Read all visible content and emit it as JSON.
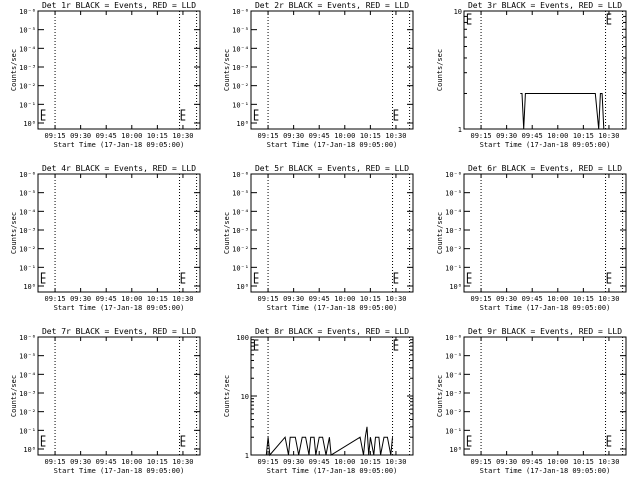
{
  "chart_data": [
    {
      "type": "line",
      "title": "Det 1r BLACK = Events, RED = LLD",
      "ylabel": "Counts/sec",
      "xlabel": "Start Time (17-Jan-18 09:05:00)",
      "xlim": [
        "09:05",
        "10:40"
      ],
      "x_ticks": [
        "09:15",
        "09:30",
        "09:45",
        "10:00",
        "10:15",
        "10:30"
      ],
      "scale": "log",
      "y_tick_labels": [
        "10⁰",
        "10⁻¹",
        "10⁻²",
        "10⁻³",
        "10⁻⁴",
        "10⁻⁵",
        "10⁻⁶"
      ],
      "dotted_markers": [
        "09:15",
        "10:28",
        "10:38"
      ],
      "gap_markers": [
        "09:07",
        "10:29"
      ],
      "series": []
    },
    {
      "type": "line",
      "title": "Det 2r BLACK = Events, RED = LLD",
      "ylabel": "Counts/sec",
      "xlabel": "Start Time (17-Jan-18 09:05:00)",
      "xlim": [
        "09:05",
        "10:40"
      ],
      "x_ticks": [
        "09:15",
        "09:30",
        "09:45",
        "10:00",
        "10:15",
        "10:30"
      ],
      "scale": "log",
      "y_tick_labels": [
        "10⁰",
        "10⁻¹",
        "10⁻²",
        "10⁻³",
        "10⁻⁴",
        "10⁻⁵",
        "10⁻⁶"
      ],
      "dotted_markers": [
        "09:15",
        "10:28",
        "10:38"
      ],
      "gap_markers": [
        "09:07",
        "10:29"
      ],
      "series": []
    },
    {
      "type": "line",
      "title": "Det 3r BLACK = Events, RED = LLD",
      "ylabel": "Counts/sec",
      "xlabel": "Start Time (17-Jan-18 09:05:00)",
      "xlim": [
        "09:05",
        "10:40"
      ],
      "x_ticks": [
        "09:15",
        "09:30",
        "09:45",
        "10:00",
        "10:15",
        "10:30"
      ],
      "scale": "log",
      "y_tick_labels": [
        "1",
        "10"
      ],
      "ylim": [
        1,
        10
      ],
      "dotted_markers": [
        "09:15",
        "10:28",
        "10:38"
      ],
      "gap_markers": [
        "09:07",
        "10:29"
      ],
      "series": [
        {
          "values": [
            [
              "09:38",
              2
            ],
            [
              "09:39",
              2
            ],
            [
              "09:40",
              1
            ],
            [
              "09:41",
              2
            ],
            [
              "09:42",
              2
            ],
            [
              "10:19",
              2
            ],
            [
              "10:20",
              2
            ],
            [
              "10:22",
              2
            ],
            [
              "10:24",
              1
            ],
            [
              "10:25",
              2
            ],
            [
              "10:26",
              2
            ],
            [
              "10:27",
              1
            ]
          ]
        }
      ]
    },
    {
      "type": "line",
      "title": "Det 4r BLACK = Events, RED = LLD",
      "ylabel": "Counts/sec",
      "xlabel": "Start Time (17-Jan-18 09:05:00)",
      "xlim": [
        "09:05",
        "10:40"
      ],
      "x_ticks": [
        "09:15",
        "09:30",
        "09:45",
        "10:00",
        "10:15",
        "10:30"
      ],
      "scale": "log",
      "y_tick_labels": [
        "10⁰",
        "10⁻¹",
        "10⁻²",
        "10⁻³",
        "10⁻⁴",
        "10⁻⁵",
        "10⁻⁶"
      ],
      "dotted_markers": [
        "09:15",
        "10:28",
        "10:38"
      ],
      "gap_markers": [
        "09:07",
        "10:29"
      ],
      "series": []
    },
    {
      "type": "line",
      "title": "Det 5r BLACK = Events, RED = LLD",
      "ylabel": "Counts/sec",
      "xlabel": "Start Time (17-Jan-18 09:05:00)",
      "xlim": [
        "09:05",
        "10:40"
      ],
      "x_ticks": [
        "09:15",
        "09:30",
        "09:45",
        "10:00",
        "10:15",
        "10:30"
      ],
      "scale": "log",
      "y_tick_labels": [
        "10⁰",
        "10⁻¹",
        "10⁻²",
        "10⁻³",
        "10⁻⁴",
        "10⁻⁵",
        "10⁻⁶"
      ],
      "dotted_markers": [
        "09:15",
        "10:28",
        "10:38"
      ],
      "gap_markers": [
        "09:07",
        "10:29"
      ],
      "series": []
    },
    {
      "type": "line",
      "title": "Det 6r BLACK = Events, RED = LLD",
      "ylabel": "Counts/sec",
      "xlabel": "Start Time (17-Jan-18 09:05:00)",
      "xlim": [
        "09:05",
        "10:40"
      ],
      "x_ticks": [
        "09:15",
        "09:30",
        "09:45",
        "10:00",
        "10:15",
        "10:30"
      ],
      "scale": "log",
      "y_tick_labels": [
        "10⁰",
        "10⁻¹",
        "10⁻²",
        "10⁻³",
        "10⁻⁴",
        "10⁻⁵",
        "10⁻⁶"
      ],
      "dotted_markers": [
        "09:15",
        "10:28",
        "10:38"
      ],
      "gap_markers": [
        "09:07",
        "10:29"
      ],
      "series": []
    },
    {
      "type": "line",
      "title": "Det 7r BLACK = Events, RED = LLD",
      "ylabel": "Counts/sec",
      "xlabel": "Start Time (17-Jan-18 09:05:00)",
      "xlim": [
        "09:05",
        "10:40"
      ],
      "x_ticks": [
        "09:15",
        "09:30",
        "09:45",
        "10:00",
        "10:15",
        "10:30"
      ],
      "scale": "log",
      "y_tick_labels": [
        "10⁰",
        "10⁻¹",
        "10⁻²",
        "10⁻³",
        "10⁻⁴",
        "10⁻⁵",
        "10⁻⁶"
      ],
      "dotted_markers": [
        "09:15",
        "10:28",
        "10:38"
      ],
      "gap_markers": [
        "09:07",
        "10:29"
      ],
      "series": []
    },
    {
      "type": "line",
      "title": "Det 8r BLACK = Events, RED = LLD",
      "ylabel": "Counts/sec",
      "xlabel": "Start Time (17-Jan-18 09:05:00)",
      "xlim": [
        "09:05",
        "10:40"
      ],
      "x_ticks": [
        "09:15",
        "09:30",
        "09:45",
        "10:00",
        "10:15",
        "10:30"
      ],
      "scale": "log",
      "y_tick_labels": [
        "1",
        "10",
        "100"
      ],
      "ylim": [
        1,
        100
      ],
      "dotted_markers": [
        "09:15",
        "10:28",
        "10:38"
      ],
      "gap_markers": [
        "09:07",
        "10:29"
      ],
      "series": [
        {
          "values": [
            [
              "09:14",
              1
            ],
            [
              "09:15",
              2
            ],
            [
              "09:16",
              1
            ],
            [
              "09:25",
              2
            ],
            [
              "09:27",
              1
            ],
            [
              "09:28",
              2
            ],
            [
              "09:31",
              2
            ],
            [
              "09:33",
              1
            ],
            [
              "09:35",
              2
            ],
            [
              "09:37",
              2
            ],
            [
              "09:39",
              1
            ],
            [
              "09:40",
              2
            ],
            [
              "09:42",
              2
            ],
            [
              "09:43",
              1
            ],
            [
              "09:45",
              2
            ],
            [
              "09:47",
              2
            ],
            [
              "09:49",
              1
            ],
            [
              "09:51",
              2
            ],
            [
              "09:52",
              1
            ],
            [
              "10:09",
              2
            ],
            [
              "10:11",
              1
            ],
            [
              "10:12",
              2
            ],
            [
              "10:13",
              3
            ],
            [
              "10:14",
              1
            ],
            [
              "10:15",
              2
            ],
            [
              "10:17",
              1
            ],
            [
              "10:18",
              2
            ],
            [
              "10:20",
              2
            ],
            [
              "10:21",
              1
            ],
            [
              "10:23",
              2
            ],
            [
              "10:25",
              2
            ],
            [
              "10:27",
              1
            ],
            [
              "10:28",
              2
            ]
          ]
        }
      ]
    },
    {
      "type": "line",
      "title": "Det 9r BLACK = Events, RED = LLD",
      "ylabel": "Counts/sec",
      "xlabel": "Start Time (17-Jan-18 09:05:00)",
      "xlim": [
        "09:05",
        "10:40"
      ],
      "x_ticks": [
        "09:15",
        "09:30",
        "09:45",
        "10:00",
        "10:15",
        "10:30"
      ],
      "scale": "log",
      "y_tick_labels": [
        "10⁰",
        "10⁻¹",
        "10⁻²",
        "10⁻³",
        "10⁻⁴",
        "10⁻⁵",
        "10⁻⁶"
      ],
      "dotted_markers": [
        "09:15",
        "10:28",
        "10:38"
      ],
      "gap_markers": [
        "09:07",
        "10:29"
      ],
      "series": []
    }
  ]
}
